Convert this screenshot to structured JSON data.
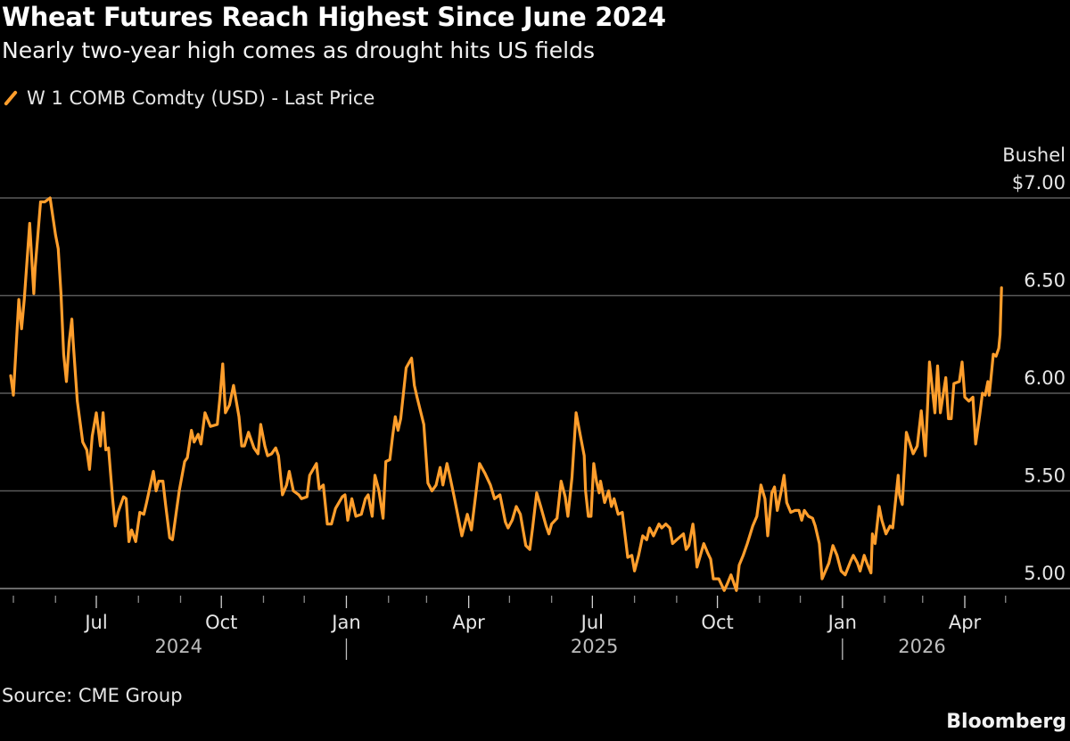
{
  "header": {
    "title": "Wheat Futures Reach Highest Since June 2024",
    "subtitle": "Nearly two-year high comes as drought hits US fields"
  },
  "footer": {
    "source": "Source: CME Group",
    "brand": "Bloomberg"
  },
  "chart_data": {
    "type": "line",
    "title": "Wheat Futures Reach Highest Since June 2024",
    "subtitle": "Nearly two-year high comes as drought hits US fields",
    "ylabel": "Bushel",
    "ylim": [
      5.0,
      7.0
    ],
    "yticks": [
      {
        "value": 7.0,
        "label": "$7.00"
      },
      {
        "value": 6.5,
        "label": "6.50"
      },
      {
        "value": 6.0,
        "label": "6.00"
      },
      {
        "value": 5.5,
        "label": "5.50"
      },
      {
        "value": 5.0,
        "label": "5.00"
      }
    ],
    "xticks": [
      {
        "date": "2024-07-01",
        "label": "Jul"
      },
      {
        "date": "2024-10-01",
        "label": "Oct"
      },
      {
        "date": "2025-01-01",
        "label": "Jan"
      },
      {
        "date": "2025-04-01",
        "label": "Apr"
      },
      {
        "date": "2025-07-01",
        "label": "Jul"
      },
      {
        "date": "2025-10-01",
        "label": "Oct"
      },
      {
        "date": "2026-01-01",
        "label": "Jan"
      },
      {
        "date": "2026-04-01",
        "label": "Apr"
      }
    ],
    "years": [
      "2024",
      "2025",
      "2026"
    ],
    "grid": true,
    "legend_position": "top-left",
    "series": [
      {
        "name": "W 1 COMB Comdty (USD) - Last Price",
        "color": "#ff9e2c",
        "points": [
          [
            "2024-04-29",
            6.09
          ],
          [
            "2024-05-01",
            5.99
          ],
          [
            "2024-05-05",
            6.48
          ],
          [
            "2024-05-07",
            6.33
          ],
          [
            "2024-05-09",
            6.48
          ],
          [
            "2024-05-13",
            6.87
          ],
          [
            "2024-05-16",
            6.51
          ],
          [
            "2024-05-17",
            6.64
          ],
          [
            "2024-05-21",
            6.98
          ],
          [
            "2024-05-24",
            6.98
          ],
          [
            "2024-05-28",
            7.0
          ],
          [
            "2024-06-01",
            6.81
          ],
          [
            "2024-06-03",
            6.74
          ],
          [
            "2024-06-05",
            6.51
          ],
          [
            "2024-06-07",
            6.2
          ],
          [
            "2024-06-09",
            6.06
          ],
          [
            "2024-06-11",
            6.26
          ],
          [
            "2024-06-13",
            6.38
          ],
          [
            "2024-06-14",
            6.26
          ],
          [
            "2024-06-17",
            5.96
          ],
          [
            "2024-06-21",
            5.75
          ],
          [
            "2024-06-24",
            5.71
          ],
          [
            "2024-06-26",
            5.61
          ],
          [
            "2024-06-28",
            5.78
          ],
          [
            "2024-07-01",
            5.9
          ],
          [
            "2024-07-04",
            5.73
          ],
          [
            "2024-07-06",
            5.9
          ],
          [
            "2024-07-08",
            5.71
          ],
          [
            "2024-07-10",
            5.72
          ],
          [
            "2024-07-13",
            5.46
          ],
          [
            "2024-07-15",
            5.32
          ],
          [
            "2024-07-17",
            5.39
          ],
          [
            "2024-07-21",
            5.47
          ],
          [
            "2024-07-23",
            5.46
          ],
          [
            "2024-07-25",
            5.24
          ],
          [
            "2024-07-27",
            5.3
          ],
          [
            "2024-07-30",
            5.24
          ],
          [
            "2024-08-02",
            5.39
          ],
          [
            "2024-08-05",
            5.38
          ],
          [
            "2024-08-07",
            5.44
          ],
          [
            "2024-08-12",
            5.6
          ],
          [
            "2024-08-14",
            5.5
          ],
          [
            "2024-08-16",
            5.55
          ],
          [
            "2024-08-19",
            5.55
          ],
          [
            "2024-08-21",
            5.43
          ],
          [
            "2024-08-24",
            5.26
          ],
          [
            "2024-08-26",
            5.25
          ],
          [
            "2024-08-31",
            5.5
          ],
          [
            "2024-09-04",
            5.65
          ],
          [
            "2024-09-06",
            5.67
          ],
          [
            "2024-09-09",
            5.81
          ],
          [
            "2024-09-11",
            5.75
          ],
          [
            "2024-09-14",
            5.79
          ],
          [
            "2024-09-16",
            5.74
          ],
          [
            "2024-09-19",
            5.9
          ],
          [
            "2024-09-23",
            5.83
          ],
          [
            "2024-09-28",
            5.84
          ],
          [
            "2024-09-30",
            5.98
          ],
          [
            "2024-10-02",
            6.15
          ],
          [
            "2024-10-04",
            5.9
          ],
          [
            "2024-10-07",
            5.94
          ],
          [
            "2024-10-10",
            6.04
          ],
          [
            "2024-10-14",
            5.88
          ],
          [
            "2024-10-16",
            5.73
          ],
          [
            "2024-10-18",
            5.73
          ],
          [
            "2024-10-21",
            5.8
          ],
          [
            "2024-10-25",
            5.72
          ],
          [
            "2024-10-28",
            5.69
          ],
          [
            "2024-10-30",
            5.84
          ],
          [
            "2024-11-02",
            5.73
          ],
          [
            "2024-11-04",
            5.68
          ],
          [
            "2024-11-07",
            5.69
          ],
          [
            "2024-11-10",
            5.72
          ],
          [
            "2024-11-12",
            5.68
          ],
          [
            "2024-11-15",
            5.48
          ],
          [
            "2024-11-18",
            5.53
          ],
          [
            "2024-11-20",
            5.6
          ],
          [
            "2024-11-23",
            5.5
          ],
          [
            "2024-11-27",
            5.48
          ],
          [
            "2024-11-29",
            5.46
          ],
          [
            "2024-12-03",
            5.47
          ],
          [
            "2024-12-05",
            5.58
          ],
          [
            "2024-12-10",
            5.64
          ],
          [
            "2024-12-12",
            5.51
          ],
          [
            "2024-12-15",
            5.53
          ],
          [
            "2024-12-18",
            5.33
          ],
          [
            "2024-12-21",
            5.33
          ],
          [
            "2024-12-24",
            5.41
          ],
          [
            "2024-12-29",
            5.47
          ],
          [
            "2024-12-31",
            5.48
          ],
          [
            "2025-01-02",
            5.35
          ],
          [
            "2025-01-05",
            5.46
          ],
          [
            "2025-01-08",
            5.37
          ],
          [
            "2025-01-12",
            5.38
          ],
          [
            "2025-01-15",
            5.46
          ],
          [
            "2025-01-17",
            5.48
          ],
          [
            "2025-01-20",
            5.37
          ],
          [
            "2025-01-22",
            5.58
          ],
          [
            "2025-01-25",
            5.5
          ],
          [
            "2025-01-28",
            5.36
          ],
          [
            "2025-01-30",
            5.65
          ],
          [
            "2025-02-02",
            5.66
          ],
          [
            "2025-02-04",
            5.78
          ],
          [
            "2025-02-06",
            5.88
          ],
          [
            "2025-02-08",
            5.81
          ],
          [
            "2025-02-10",
            5.87
          ],
          [
            "2025-02-14",
            6.13
          ],
          [
            "2025-02-18",
            6.18
          ],
          [
            "2025-02-20",
            6.04
          ],
          [
            "2025-02-22",
            5.98
          ],
          [
            "2025-02-27",
            5.84
          ],
          [
            "2025-03-02",
            5.54
          ],
          [
            "2025-03-05",
            5.5
          ],
          [
            "2025-03-08",
            5.53
          ],
          [
            "2025-03-11",
            5.62
          ],
          [
            "2025-03-13",
            5.53
          ],
          [
            "2025-03-16",
            5.64
          ],
          [
            "2025-03-18",
            5.58
          ],
          [
            "2025-03-21",
            5.48
          ],
          [
            "2025-03-27",
            5.27
          ],
          [
            "2025-03-31",
            5.38
          ],
          [
            "2025-04-03",
            5.3
          ],
          [
            "2025-04-09",
            5.64
          ],
          [
            "2025-04-13",
            5.59
          ],
          [
            "2025-04-17",
            5.53
          ],
          [
            "2025-04-20",
            5.46
          ],
          [
            "2025-04-24",
            5.48
          ],
          [
            "2025-04-28",
            5.34
          ],
          [
            "2025-04-30",
            5.31
          ],
          [
            "2025-05-03",
            5.35
          ],
          [
            "2025-05-06",
            5.42
          ],
          [
            "2025-05-09",
            5.38
          ],
          [
            "2025-05-13",
            5.22
          ],
          [
            "2025-05-16",
            5.2
          ],
          [
            "2025-05-18",
            5.31
          ],
          [
            "2025-05-21",
            5.49
          ],
          [
            "2025-05-24",
            5.42
          ],
          [
            "2025-05-28",
            5.32
          ],
          [
            "2025-05-30",
            5.28
          ],
          [
            "2025-06-01",
            5.33
          ],
          [
            "2025-06-05",
            5.36
          ],
          [
            "2025-06-08",
            5.55
          ],
          [
            "2025-06-11",
            5.47
          ],
          [
            "2025-06-13",
            5.37
          ],
          [
            "2025-06-16",
            5.57
          ],
          [
            "2025-06-19",
            5.9
          ],
          [
            "2025-06-22",
            5.79
          ],
          [
            "2025-06-25",
            5.68
          ],
          [
            "2025-06-26",
            5.5
          ],
          [
            "2025-06-28",
            5.37
          ],
          [
            "2025-06-30",
            5.37
          ],
          [
            "2025-07-02",
            5.64
          ],
          [
            "2025-07-04",
            5.55
          ],
          [
            "2025-07-06",
            5.49
          ],
          [
            "2025-07-07",
            5.55
          ],
          [
            "2025-07-10",
            5.44
          ],
          [
            "2025-07-13",
            5.5
          ],
          [
            "2025-07-15",
            5.42
          ],
          [
            "2025-07-17",
            5.46
          ],
          [
            "2025-07-20",
            5.38
          ],
          [
            "2025-07-23",
            5.39
          ],
          [
            "2025-07-27",
            5.16
          ],
          [
            "2025-07-30",
            5.17
          ],
          [
            "2025-08-01",
            5.09
          ],
          [
            "2025-08-04",
            5.17
          ],
          [
            "2025-08-07",
            5.27
          ],
          [
            "2025-08-10",
            5.25
          ],
          [
            "2025-08-12",
            5.31
          ],
          [
            "2025-08-15",
            5.27
          ],
          [
            "2025-08-19",
            5.33
          ],
          [
            "2025-08-21",
            5.31
          ],
          [
            "2025-08-24",
            5.33
          ],
          [
            "2025-08-27",
            5.31
          ],
          [
            "2025-08-29",
            5.23
          ],
          [
            "2025-09-01",
            5.25
          ],
          [
            "2025-09-06",
            5.28
          ],
          [
            "2025-09-08",
            5.2
          ],
          [
            "2025-09-10",
            5.22
          ],
          [
            "2025-09-13",
            5.33
          ],
          [
            "2025-09-14",
            5.27
          ],
          [
            "2025-09-16",
            5.11
          ],
          [
            "2025-09-21",
            5.23
          ],
          [
            "2025-09-24",
            5.18
          ],
          [
            "2025-09-26",
            5.15
          ],
          [
            "2025-09-28",
            5.05
          ],
          [
            "2025-10-02",
            5.05
          ],
          [
            "2025-10-06",
            4.99
          ],
          [
            "2025-10-08",
            5.02
          ],
          [
            "2025-10-11",
            5.07
          ],
          [
            "2025-10-15",
            4.99
          ],
          [
            "2025-10-17",
            5.12
          ],
          [
            "2025-10-20",
            5.17
          ],
          [
            "2025-10-23",
            5.23
          ],
          [
            "2025-10-27",
            5.32
          ],
          [
            "2025-10-30",
            5.37
          ],
          [
            "2025-11-02",
            5.53
          ],
          [
            "2025-11-05",
            5.46
          ],
          [
            "2025-11-07",
            5.27
          ],
          [
            "2025-11-10",
            5.49
          ],
          [
            "2025-11-12",
            5.52
          ],
          [
            "2025-11-14",
            5.4
          ],
          [
            "2025-11-17",
            5.5
          ],
          [
            "2025-11-19",
            5.58
          ],
          [
            "2025-11-21",
            5.44
          ],
          [
            "2025-11-24",
            5.39
          ],
          [
            "2025-11-27",
            5.4
          ],
          [
            "2025-11-30",
            5.4
          ],
          [
            "2025-12-02",
            5.35
          ],
          [
            "2025-12-04",
            5.4
          ],
          [
            "2025-12-07",
            5.37
          ],
          [
            "2025-12-10",
            5.36
          ],
          [
            "2025-12-12",
            5.32
          ],
          [
            "2025-12-15",
            5.23
          ],
          [
            "2025-12-17",
            5.05
          ],
          [
            "2025-12-22",
            5.13
          ],
          [
            "2025-12-25",
            5.22
          ],
          [
            "2025-12-28",
            5.17
          ],
          [
            "2025-12-31",
            5.09
          ],
          [
            "2026-01-03",
            5.07
          ],
          [
            "2026-01-07",
            5.14
          ],
          [
            "2026-01-09",
            5.17
          ],
          [
            "2026-01-12",
            5.13
          ],
          [
            "2026-01-14",
            5.09
          ],
          [
            "2026-01-17",
            5.17
          ],
          [
            "2026-01-19",
            5.13
          ],
          [
            "2026-01-22",
            5.08
          ],
          [
            "2026-01-23",
            5.28
          ],
          [
            "2026-01-25",
            5.23
          ],
          [
            "2026-01-28",
            5.42
          ],
          [
            "2026-01-30",
            5.35
          ],
          [
            "2026-02-02",
            5.28
          ],
          [
            "2026-02-05",
            5.32
          ],
          [
            "2026-02-07",
            5.31
          ],
          [
            "2026-02-11",
            5.58
          ],
          [
            "2026-02-12",
            5.48
          ],
          [
            "2026-02-14",
            5.43
          ],
          [
            "2026-02-17",
            5.8
          ],
          [
            "2026-02-22",
            5.69
          ],
          [
            "2026-02-25",
            5.73
          ],
          [
            "2026-02-28",
            5.91
          ],
          [
            "2026-03-03",
            5.68
          ],
          [
            "2026-03-04",
            5.83
          ],
          [
            "2026-03-06",
            6.16
          ],
          [
            "2026-03-10",
            5.9
          ],
          [
            "2026-03-12",
            6.14
          ],
          [
            "2026-03-14",
            5.9
          ],
          [
            "2026-03-18",
            6.08
          ],
          [
            "2026-03-20",
            5.87
          ],
          [
            "2026-03-22",
            5.87
          ],
          [
            "2026-03-24",
            6.05
          ],
          [
            "2026-03-28",
            6.06
          ],
          [
            "2026-03-30",
            6.16
          ],
          [
            "2026-04-01",
            5.98
          ],
          [
            "2026-04-04",
            5.96
          ],
          [
            "2026-04-07",
            5.98
          ],
          [
            "2026-04-09",
            5.74
          ],
          [
            "2026-04-12",
            5.89
          ],
          [
            "2026-04-14",
            6.0
          ],
          [
            "2026-04-16",
            5.99
          ],
          [
            "2026-04-18",
            6.06
          ],
          [
            "2026-04-19",
            5.99
          ],
          [
            "2026-04-20",
            6.06
          ],
          [
            "2026-04-22",
            6.2
          ],
          [
            "2026-04-24",
            6.19
          ],
          [
            "2026-04-26",
            6.23
          ],
          [
            "2026-04-27",
            6.3
          ],
          [
            "2026-04-28",
            6.54
          ]
        ]
      }
    ]
  }
}
